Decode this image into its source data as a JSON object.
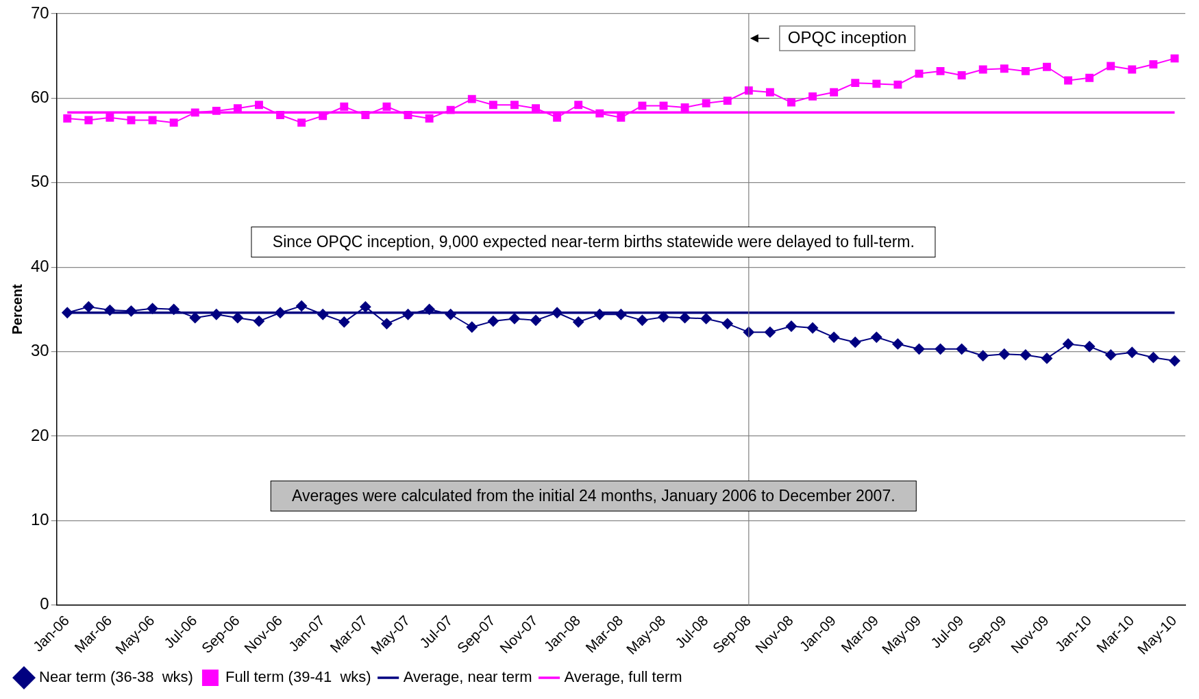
{
  "chart_data": {
    "type": "line",
    "ylabel": "Percent",
    "categories": [
      "Jan-06",
      null,
      "Mar-06",
      null,
      "May-06",
      null,
      "Jul-06",
      null,
      "Sep-06",
      null,
      "Nov-06",
      null,
      "Jan-07",
      null,
      "Mar-07",
      null,
      "May-07",
      null,
      "Jul-07",
      null,
      "Sep-07",
      null,
      "Nov-07",
      null,
      "Jan-08",
      null,
      "Mar-08",
      null,
      "May-08",
      null,
      "Jul-08",
      null,
      "Sep-08",
      null,
      "Nov-08",
      null,
      "Jan-09",
      null,
      "Mar-09",
      null,
      "May-09",
      null,
      "Jul-09",
      null,
      "Sep-09",
      null,
      "Nov-09",
      null,
      "Jan-10",
      null,
      "Mar-10",
      null,
      "May-10"
    ],
    "series": [
      {
        "name": "Near term (36-38  wks)",
        "color": "#000080",
        "marker": "diamond",
        "values": [
          34.6,
          35.3,
          34.9,
          34.8,
          35.1,
          35.0,
          34.0,
          34.4,
          34.0,
          33.6,
          34.6,
          35.4,
          34.4,
          33.5,
          35.3,
          33.3,
          34.4,
          35.0,
          34.4,
          32.9,
          33.6,
          33.9,
          33.7,
          34.6,
          33.5,
          34.4,
          34.4,
          33.7,
          34.1,
          34.0,
          33.9,
          33.3,
          32.3,
          32.3,
          33.0,
          32.8,
          31.7,
          31.1,
          31.7,
          30.9,
          30.3,
          30.3,
          30.3,
          29.5,
          29.7,
          29.6,
          29.2,
          30.9,
          30.6,
          29.6,
          29.9,
          29.3,
          28.9
        ]
      },
      {
        "name": "Full term (39-41  wks)",
        "color": "#ff00ff",
        "marker": "square",
        "values": [
          57.6,
          57.4,
          57.7,
          57.4,
          57.4,
          57.1,
          58.3,
          58.5,
          58.8,
          59.2,
          58.0,
          57.1,
          57.9,
          59.0,
          58.0,
          59.0,
          58.0,
          57.6,
          58.6,
          59.9,
          59.2,
          59.2,
          58.8,
          57.7,
          59.2,
          58.2,
          57.7,
          59.1,
          59.1,
          58.9,
          59.4,
          59.7,
          60.9,
          60.7,
          59.5,
          60.2,
          60.7,
          61.8,
          61.7,
          61.6,
          62.9,
          63.2,
          62.7,
          63.4,
          63.5,
          63.2,
          63.7,
          62.1,
          62.4,
          63.8,
          63.4,
          64.0,
          64.7
        ]
      },
      {
        "name": "Average, near term",
        "color": "#000080",
        "marker": "none",
        "values": [
          34.6,
          34.6,
          34.6,
          34.6,
          34.6,
          34.6,
          34.6,
          34.6,
          34.6,
          34.6,
          34.6,
          34.6,
          34.6,
          34.6,
          34.6,
          34.6,
          34.6,
          34.6,
          34.6,
          34.6,
          34.6,
          34.6,
          34.6,
          34.6,
          34.6,
          34.6,
          34.6,
          34.6,
          34.6,
          34.6,
          34.6,
          34.6,
          34.6,
          34.6,
          34.6,
          34.6,
          34.6,
          34.6,
          34.6,
          34.6,
          34.6,
          34.6,
          34.6,
          34.6,
          34.6,
          34.6,
          34.6,
          34.6,
          34.6,
          34.6,
          34.6,
          34.6,
          34.6
        ]
      },
      {
        "name": "Average, full term",
        "color": "#ff00ff",
        "marker": "none",
        "values": [
          58.3,
          58.3,
          58.3,
          58.3,
          58.3,
          58.3,
          58.3,
          58.3,
          58.3,
          58.3,
          58.3,
          58.3,
          58.3,
          58.3,
          58.3,
          58.3,
          58.3,
          58.3,
          58.3,
          58.3,
          58.3,
          58.3,
          58.3,
          58.3,
          58.3,
          58.3,
          58.3,
          58.3,
          58.3,
          58.3,
          58.3,
          58.3,
          58.3,
          58.3,
          58.3,
          58.3,
          58.3,
          58.3,
          58.3,
          58.3,
          58.3,
          58.3,
          58.3,
          58.3,
          58.3,
          58.3,
          58.3,
          58.3,
          58.3,
          58.3,
          58.3,
          58.3,
          58.3
        ]
      }
    ],
    "ref_lines": [
      {
        "axis": "x",
        "value": "Sep-08",
        "label": "OPQC inception",
        "color": "#808080"
      }
    ],
    "annotations": [
      "Since OPQC inception, 9,000 expected near-term births statewide were  delayed to full-term.",
      "Averages were calculated from the initial 24 months, January  2006 to December 2007."
    ],
    "ylim": [
      0,
      70
    ],
    "yticks": [
      0,
      10,
      20,
      30,
      40,
      50,
      60,
      70
    ],
    "grid": "y",
    "legend": "bottom"
  }
}
